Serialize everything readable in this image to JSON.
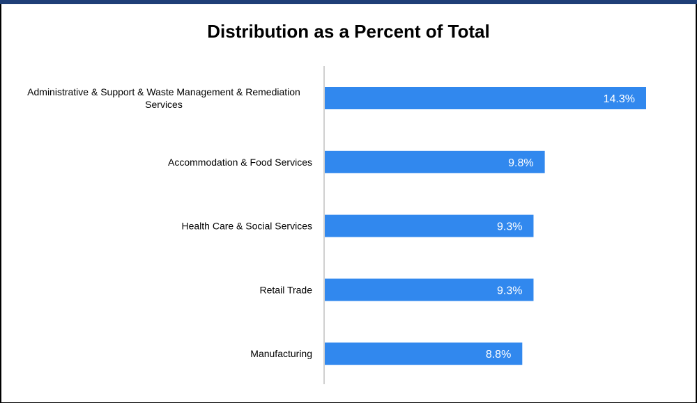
{
  "chart_data": {
    "type": "bar",
    "orientation": "horizontal",
    "title": "Distribution as a Percent of Total",
    "categories": [
      "Administrative & Support & Waste Management & Remediation Services",
      "Accommodation & Food Services",
      "Health Care & Social Services",
      "Retail Trade",
      "Manufacturing"
    ],
    "category_lines": [
      [
        "Administrative & Support & Waste Management & Remediation",
        "Services"
      ],
      [
        "Accommodation & Food Services"
      ],
      [
        "Health Care & Social Services"
      ],
      [
        "Retail Trade"
      ],
      [
        "Manufacturing"
      ]
    ],
    "values": [
      14.3,
      9.8,
      9.3,
      9.3,
      8.8
    ],
    "value_labels": [
      "14.3%",
      "9.8%",
      "9.3%",
      "9.3%",
      "8.8%"
    ],
    "xlim": [
      0,
      14.3
    ],
    "grid": false,
    "legend": "none",
    "bar_color": "#3188ee",
    "label_color": "#ffffff",
    "axis_color": "#d0d0d0"
  }
}
